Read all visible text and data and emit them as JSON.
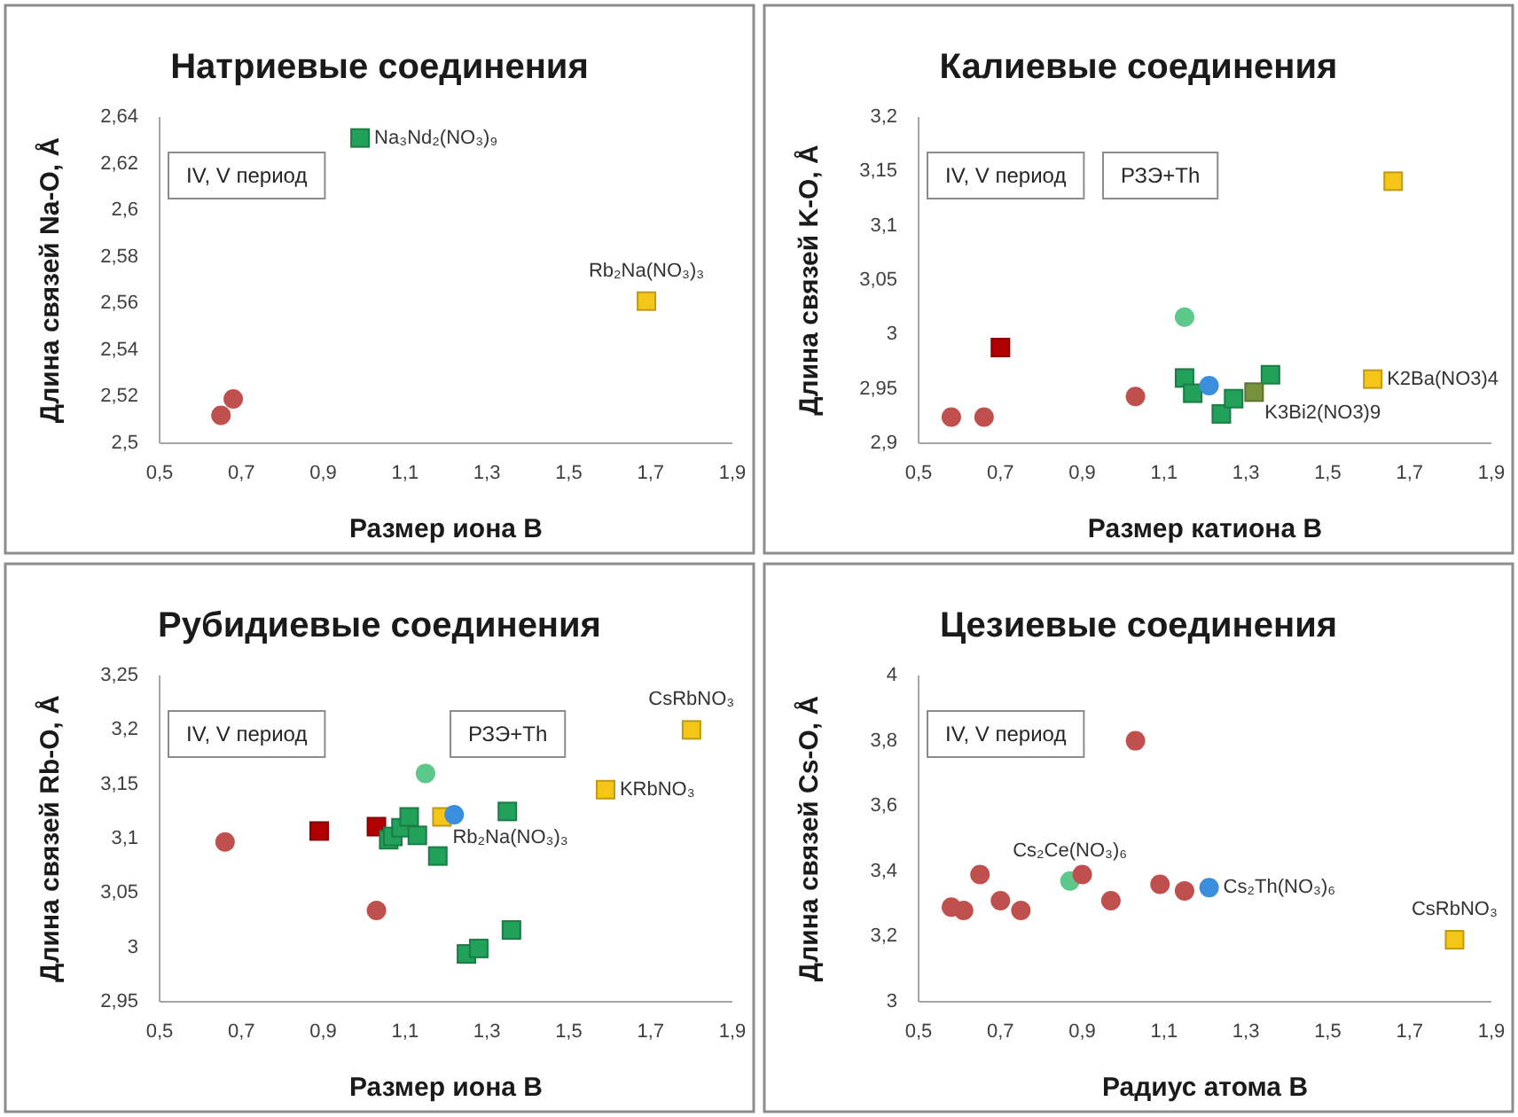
{
  "chart_data": [
    {
      "type": "scatter",
      "title": "Натриевые соединения",
      "xlabel": "Размер иона В",
      "ylabel": "Длина связей Na-O, Å",
      "xlim": [
        0.5,
        1.9
      ],
      "xticks": [
        {
          "value": 0.5,
          "label": "0,5"
        },
        {
          "value": 0.7,
          "label": "0,7"
        },
        {
          "value": 0.9,
          "label": "0,9"
        },
        {
          "value": 1.1,
          "label": "1,1"
        },
        {
          "value": 1.3,
          "label": "1,3"
        },
        {
          "value": 1.5,
          "label": "1,5"
        },
        {
          "value": 1.7,
          "label": "1,7"
        },
        {
          "value": 1.9,
          "label": "1,9"
        }
      ],
      "ylim": [
        2.5,
        2.64
      ],
      "yticks": [
        {
          "value": 2.5,
          "label": "2,5"
        },
        {
          "value": 2.52,
          "label": "2,52"
        },
        {
          "value": 2.54,
          "label": "2,54"
        },
        {
          "value": 2.56,
          "label": "2,56"
        },
        {
          "value": 2.58,
          "label": "2,58"
        },
        {
          "value": 2.6,
          "label": "2,6"
        },
        {
          "value": 2.62,
          "label": "2,62"
        },
        {
          "value": 2.64,
          "label": "2,64"
        }
      ],
      "series": [
        {
          "color": "#c0504d",
          "marker": "circle",
          "x": [
            0.65,
            0.68
          ],
          "values": [
            2.512,
            2.519
          ]
        },
        {
          "color": "#21a159",
          "marker": "square",
          "x": [
            0.99
          ],
          "values": [
            2.631
          ]
        },
        {
          "color": "#f5c518",
          "marker": "square",
          "x": [
            1.69
          ],
          "values": [
            2.561
          ]
        }
      ],
      "annotations": [
        {
          "text": "Na₃Nd₂(NO₃)₉",
          "x": 0.99,
          "y": 2.631
        },
        {
          "text": "Rb₂Na(NO₃)₃",
          "x": 1.69,
          "y": 2.561
        },
        "IV, V период"
      ]
    },
    {
      "type": "scatter",
      "title": "Калиевые соединения",
      "xlabel": "Размер катиона В",
      "ylabel": "Длина связей K-O, Å",
      "xlim": [
        0.5,
        1.9
      ],
      "xticks": [
        {
          "value": 0.5,
          "label": "0,5"
        },
        {
          "value": 0.7,
          "label": "0,7"
        },
        {
          "value": 0.9,
          "label": "0,9"
        },
        {
          "value": 1.1,
          "label": "1,1"
        },
        {
          "value": 1.3,
          "label": "1,3"
        },
        {
          "value": 1.5,
          "label": "1,5"
        },
        {
          "value": 1.7,
          "label": "1,7"
        },
        {
          "value": 1.9,
          "label": "1,9"
        }
      ],
      "ylim": [
        2.9,
        3.2
      ],
      "yticks": [
        {
          "value": 2.9,
          "label": "2,9"
        },
        {
          "value": 2.95,
          "label": "2,95"
        },
        {
          "value": 3,
          "label": "3"
        },
        {
          "value": 3.05,
          "label": "3,05"
        },
        {
          "value": 3.1,
          "label": "3,1"
        },
        {
          "value": 3.15,
          "label": "3,15"
        },
        {
          "value": 3.2,
          "label": "3,2"
        }
      ],
      "series": [
        {
          "color": "#c0504d",
          "marker": "circle",
          "x": [
            0.58,
            0.66,
            1.03
          ],
          "values": [
            2.924,
            2.924,
            2.943
          ]
        },
        {
          "color": "#b00000",
          "marker": "square",
          "x": [
            0.7
          ],
          "values": [
            2.988
          ]
        },
        {
          "color": "#5cc98a",
          "marker": "circle",
          "x": [
            1.15
          ],
          "values": [
            3.016
          ]
        },
        {
          "color": "#21a159",
          "marker": "square",
          "x": [
            1.15,
            1.17,
            1.24,
            1.27,
            1.36
          ],
          "values": [
            2.96,
            2.946,
            2.927,
            2.941,
            2.963
          ]
        },
        {
          "color": "#76923c",
          "marker": "square",
          "x": [
            1.32
          ],
          "values": [
            2.947
          ]
        },
        {
          "color": "#3b8ede",
          "marker": "circle",
          "x": [
            1.21
          ],
          "values": [
            2.953
          ]
        },
        {
          "color": "#f5c518",
          "marker": "square",
          "x": [
            1.61,
            1.66
          ],
          "values": [
            2.959,
            3.141
          ]
        }
      ],
      "annotations": [
        {
          "text": "K2Ba(NO3)4",
          "x": 1.61,
          "y": 2.959
        },
        {
          "text": "K3Bi2(NO3)9",
          "x": 1.32,
          "y": 2.947
        },
        "IV, V период",
        "РЗЭ+Th"
      ]
    },
    {
      "type": "scatter",
      "title": "Рубидиевые соединения",
      "xlabel": "Размер иона В",
      "ylabel": "Длина связей Rb-O, Å",
      "xlim": [
        0.5,
        1.9
      ],
      "xticks": [
        {
          "value": 0.5,
          "label": "0,5"
        },
        {
          "value": 0.7,
          "label": "0,7"
        },
        {
          "value": 0.9,
          "label": "0,9"
        },
        {
          "value": 1.1,
          "label": "1,1"
        },
        {
          "value": 1.3,
          "label": "1,3"
        },
        {
          "value": 1.5,
          "label": "1,5"
        },
        {
          "value": 1.7,
          "label": "1,7"
        },
        {
          "value": 1.9,
          "label": "1,9"
        }
      ],
      "ylim": [
        2.95,
        3.25
      ],
      "yticks": [
        {
          "value": 2.95,
          "label": "2,95"
        },
        {
          "value": 3,
          "label": "3"
        },
        {
          "value": 3.05,
          "label": "3,05"
        },
        {
          "value": 3.1,
          "label": "3,1"
        },
        {
          "value": 3.15,
          "label": "3,15"
        },
        {
          "value": 3.2,
          "label": "3,2"
        },
        {
          "value": 3.25,
          "label": "3,25"
        }
      ],
      "series": [
        {
          "color": "#c0504d",
          "marker": "circle",
          "x": [
            0.66,
            1.03
          ],
          "values": [
            3.097,
            3.034
          ]
        },
        {
          "color": "#b00000",
          "marker": "square",
          "x": [
            0.89,
            1.03
          ],
          "values": [
            3.107,
            3.111
          ]
        },
        {
          "color": "#21a159",
          "marker": "square",
          "x": [
            1.06,
            1.07,
            1.09,
            1.11,
            1.13,
            1.18,
            1.35,
            1.25,
            1.28,
            1.36
          ],
          "values": [
            3.099,
            3.102,
            3.11,
            3.12,
            3.103,
            3.084,
            3.125,
            2.994,
            2.999,
            3.016
          ]
        },
        {
          "color": "#5cc98a",
          "marker": "circle",
          "x": [
            1.15
          ],
          "values": [
            3.16
          ]
        },
        {
          "color": "#f5c518",
          "marker": "square",
          "x": [
            1.19,
            1.59,
            1.8
          ],
          "values": [
            3.12,
            3.145,
            3.2
          ]
        },
        {
          "color": "#3b8ede",
          "marker": "circle",
          "x": [
            1.22
          ],
          "values": [
            3.122
          ]
        }
      ],
      "annotations": [
        {
          "text": "Rb₂Na(NO₃)₃",
          "x": 1.19,
          "y": 3.12
        },
        {
          "text": "KRbNO₃",
          "x": 1.59,
          "y": 3.145
        },
        {
          "text": "CsRbNO₃",
          "x": 1.8,
          "y": 3.2
        },
        "IV, V период",
        "РЗЭ+Th"
      ]
    },
    {
      "type": "scatter",
      "title": "Цезиевые соединения",
      "xlabel": "Радиус атома В",
      "ylabel": "Длина связей Cs-O, Å",
      "xlim": [
        0.5,
        1.9
      ],
      "xticks": [
        {
          "value": 0.5,
          "label": "0,5"
        },
        {
          "value": 0.7,
          "label": "0,7"
        },
        {
          "value": 0.9,
          "label": "0,9"
        },
        {
          "value": 1.1,
          "label": "1,1"
        },
        {
          "value": 1.3,
          "label": "1,3"
        },
        {
          "value": 1.5,
          "label": "1,5"
        },
        {
          "value": 1.7,
          "label": "1,7"
        },
        {
          "value": 1.9,
          "label": "1,9"
        }
      ],
      "ylim": [
        3,
        4
      ],
      "yticks": [
        {
          "value": 3,
          "label": "3"
        },
        {
          "value": 3.2,
          "label": "3,2"
        },
        {
          "value": 3.4,
          "label": "3,4"
        },
        {
          "value": 3.6,
          "label": "3,6"
        },
        {
          "value": 3.8,
          "label": "3,8"
        },
        {
          "value": 4,
          "label": "4"
        }
      ],
      "series": [
        {
          "color": "#5cc98a",
          "marker": "circle",
          "x": [
            0.87
          ],
          "values": [
            3.37
          ]
        },
        {
          "color": "#c0504d",
          "marker": "circle",
          "x": [
            0.58,
            0.61,
            0.65,
            0.7,
            0.75,
            0.9,
            0.97,
            1.03,
            1.09,
            1.15
          ],
          "values": [
            3.29,
            3.28,
            3.39,
            3.31,
            3.28,
            3.39,
            3.31,
            3.8,
            3.36,
            3.34
          ]
        },
        {
          "color": "#3b8ede",
          "marker": "circle",
          "x": [
            1.21
          ],
          "values": [
            3.35
          ]
        },
        {
          "color": "#f5c518",
          "marker": "square",
          "x": [
            1.81
          ],
          "values": [
            3.19
          ]
        }
      ],
      "annotations": [
        {
          "text": "Cs₂Ce(NO₃)₆",
          "x": 0.87,
          "y": 3.37
        },
        {
          "text": "Cs₂Th(NO₃)₆",
          "x": 1.21,
          "y": 3.35
        },
        {
          "text": "CsRbNO₃",
          "x": 1.81,
          "y": 3.19
        },
        "IV, V период"
      ]
    }
  ]
}
